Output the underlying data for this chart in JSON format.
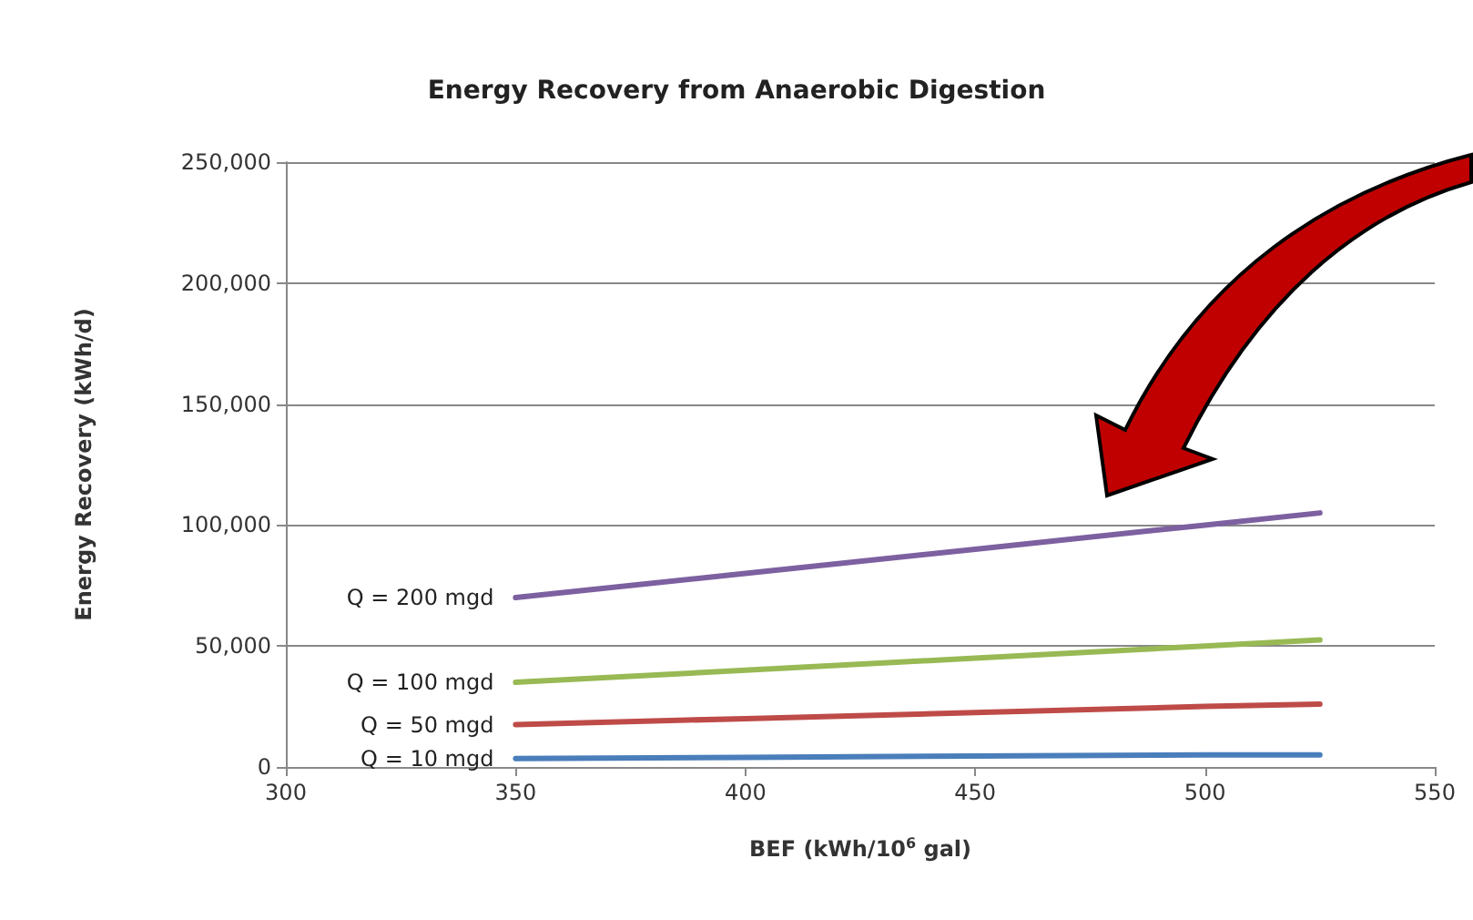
{
  "chart_data": {
    "type": "line",
    "title": "Energy Recovery from Anaerobic Digestion",
    "xlabel": "BEF (kWh/10$^{6}$ gal)",
    "ylabel": "Energy Recovery (kWh/d)",
    "x": [
      350,
      400,
      450,
      500,
      525
    ],
    "series": [
      {
        "name": "Q = 10 mgd",
        "color": "#4a7ebb",
        "values": [
          3500,
          4000,
          4500,
          5000,
          5000
        ]
      },
      {
        "name": "Q = 50 mgd",
        "color": "#be4b48",
        "values": [
          17500,
          20000,
          22500,
          25000,
          26000
        ]
      },
      {
        "name": "Q = 100 mgd",
        "color": "#98b954",
        "values": [
          35000,
          40000,
          45000,
          50000,
          52500
        ]
      },
      {
        "name": "Q = 200 mgd",
        "color": "#7d60a0",
        "values": [
          70000,
          80000,
          90000,
          100000,
          105000
        ]
      }
    ],
    "xlim": [
      300,
      550
    ],
    "xticks": [
      300,
      350,
      400,
      450,
      500,
      550
    ],
    "ylim": [
      0,
      250000
    ],
    "yticks": [
      0,
      {
        "value": 50000,
        "label": "50,000"
      },
      {
        "value": 100000,
        "label": "100,000"
      },
      {
        "value": 150000,
        "label": "150,000"
      },
      {
        "value": 200000,
        "label": "200,000"
      },
      {
        "value": 250000,
        "label": "250,000"
      }
    ],
    "grid": "y",
    "legend": false,
    "marker": "none",
    "line_style": "solid"
  }
}
